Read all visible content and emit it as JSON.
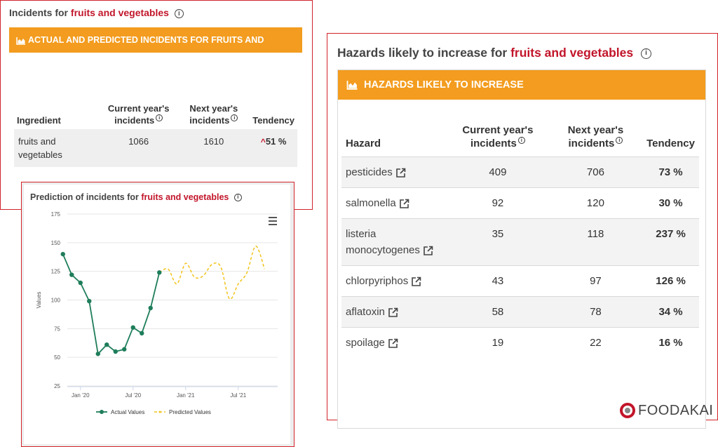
{
  "incidents_panel": {
    "title_prefix": "Incidents for ",
    "title_highlight": "fruits and vegetables",
    "bar_title": "ACTUAL AND PREDICTED INCIDENTS FOR FRUITS AND",
    "headers": [
      "Ingredient",
      "Current year's incidents",
      "Next year's incidents",
      "Tendency"
    ],
    "row": {
      "ingredient": "fruits and vegetables",
      "current": "1066",
      "next": "1610",
      "tendency": "51 %"
    }
  },
  "prediction_panel": {
    "title_prefix": "Prediction of incidents for ",
    "title_highlight": "fruits and vegetables",
    "menu_icon": "hamburger-menu-icon"
  },
  "hazards_panel": {
    "title_prefix": "Hazards likely to increase for ",
    "title_highlight": "fruits and vegetables",
    "bar_title": "HAZARDS LIKELY TO INCREASE",
    "headers": [
      "Hazard",
      "Current year's incidents",
      "Next year's incidents",
      "Tendency"
    ],
    "rows": [
      {
        "hazard": "pesticides",
        "current": "409",
        "next": "706",
        "tendency": "73 %"
      },
      {
        "hazard": "salmonella",
        "current": "92",
        "next": "120",
        "tendency": "30 %"
      },
      {
        "hazard": "listeria monocytogenes",
        "current": "35",
        "next": "118",
        "tendency": "237 %"
      },
      {
        "hazard": "chlorpyriphos",
        "current": "43",
        "next": "97",
        "tendency": "126 %"
      },
      {
        "hazard": "aflatoxin",
        "current": "58",
        "next": "78",
        "tendency": "34 %"
      },
      {
        "hazard": "spoilage",
        "current": "19",
        "next": "22",
        "tendency": "16 %"
      }
    ]
  },
  "logo": {
    "text": "FOODAKAI"
  },
  "colors": {
    "accent_red": "#c2152a",
    "orange": "#f39c1f",
    "actual_green": "#1e7d5a",
    "predicted_yellow": "#f2c31b"
  },
  "chart_data": {
    "type": "line",
    "ylabel": "Values",
    "xlabel": "",
    "ylim": [
      25,
      175
    ],
    "yticks": [
      25,
      50,
      75,
      100,
      125,
      150,
      175
    ],
    "xticks": [
      "Jan '20",
      "Jul '20",
      "Jan '21",
      "Jul '21"
    ],
    "legend_position": "bottom",
    "series": [
      {
        "name": "Actual Values",
        "color": "#1e7d5a",
        "markers": true,
        "points": [
          [
            "2019-11",
            140
          ],
          [
            "2019-12",
            122
          ],
          [
            "2020-01",
            115
          ],
          [
            "2020-02",
            99
          ],
          [
            "2020-03",
            53
          ],
          [
            "2020-04",
            61
          ],
          [
            "2020-05",
            55
          ],
          [
            "2020-06",
            57
          ],
          [
            "2020-07",
            76
          ],
          [
            "2020-08",
            71
          ],
          [
            "2020-09",
            93
          ],
          [
            "2020-10",
            124
          ]
        ]
      },
      {
        "name": "Predicted Values",
        "color": "#f2c31b",
        "dashed": true,
        "points": [
          [
            "2020-10",
            124
          ],
          [
            "2020-11",
            127
          ],
          [
            "2020-12",
            114
          ],
          [
            "2021-01",
            132
          ],
          [
            "2021-02",
            120
          ],
          [
            "2021-03",
            121
          ],
          [
            "2021-04",
            131
          ],
          [
            "2021-05",
            129
          ],
          [
            "2021-06",
            101
          ],
          [
            "2021-07",
            114
          ],
          [
            "2021-08",
            124
          ],
          [
            "2021-09",
            147
          ],
          [
            "2021-10",
            127
          ]
        ]
      }
    ]
  }
}
